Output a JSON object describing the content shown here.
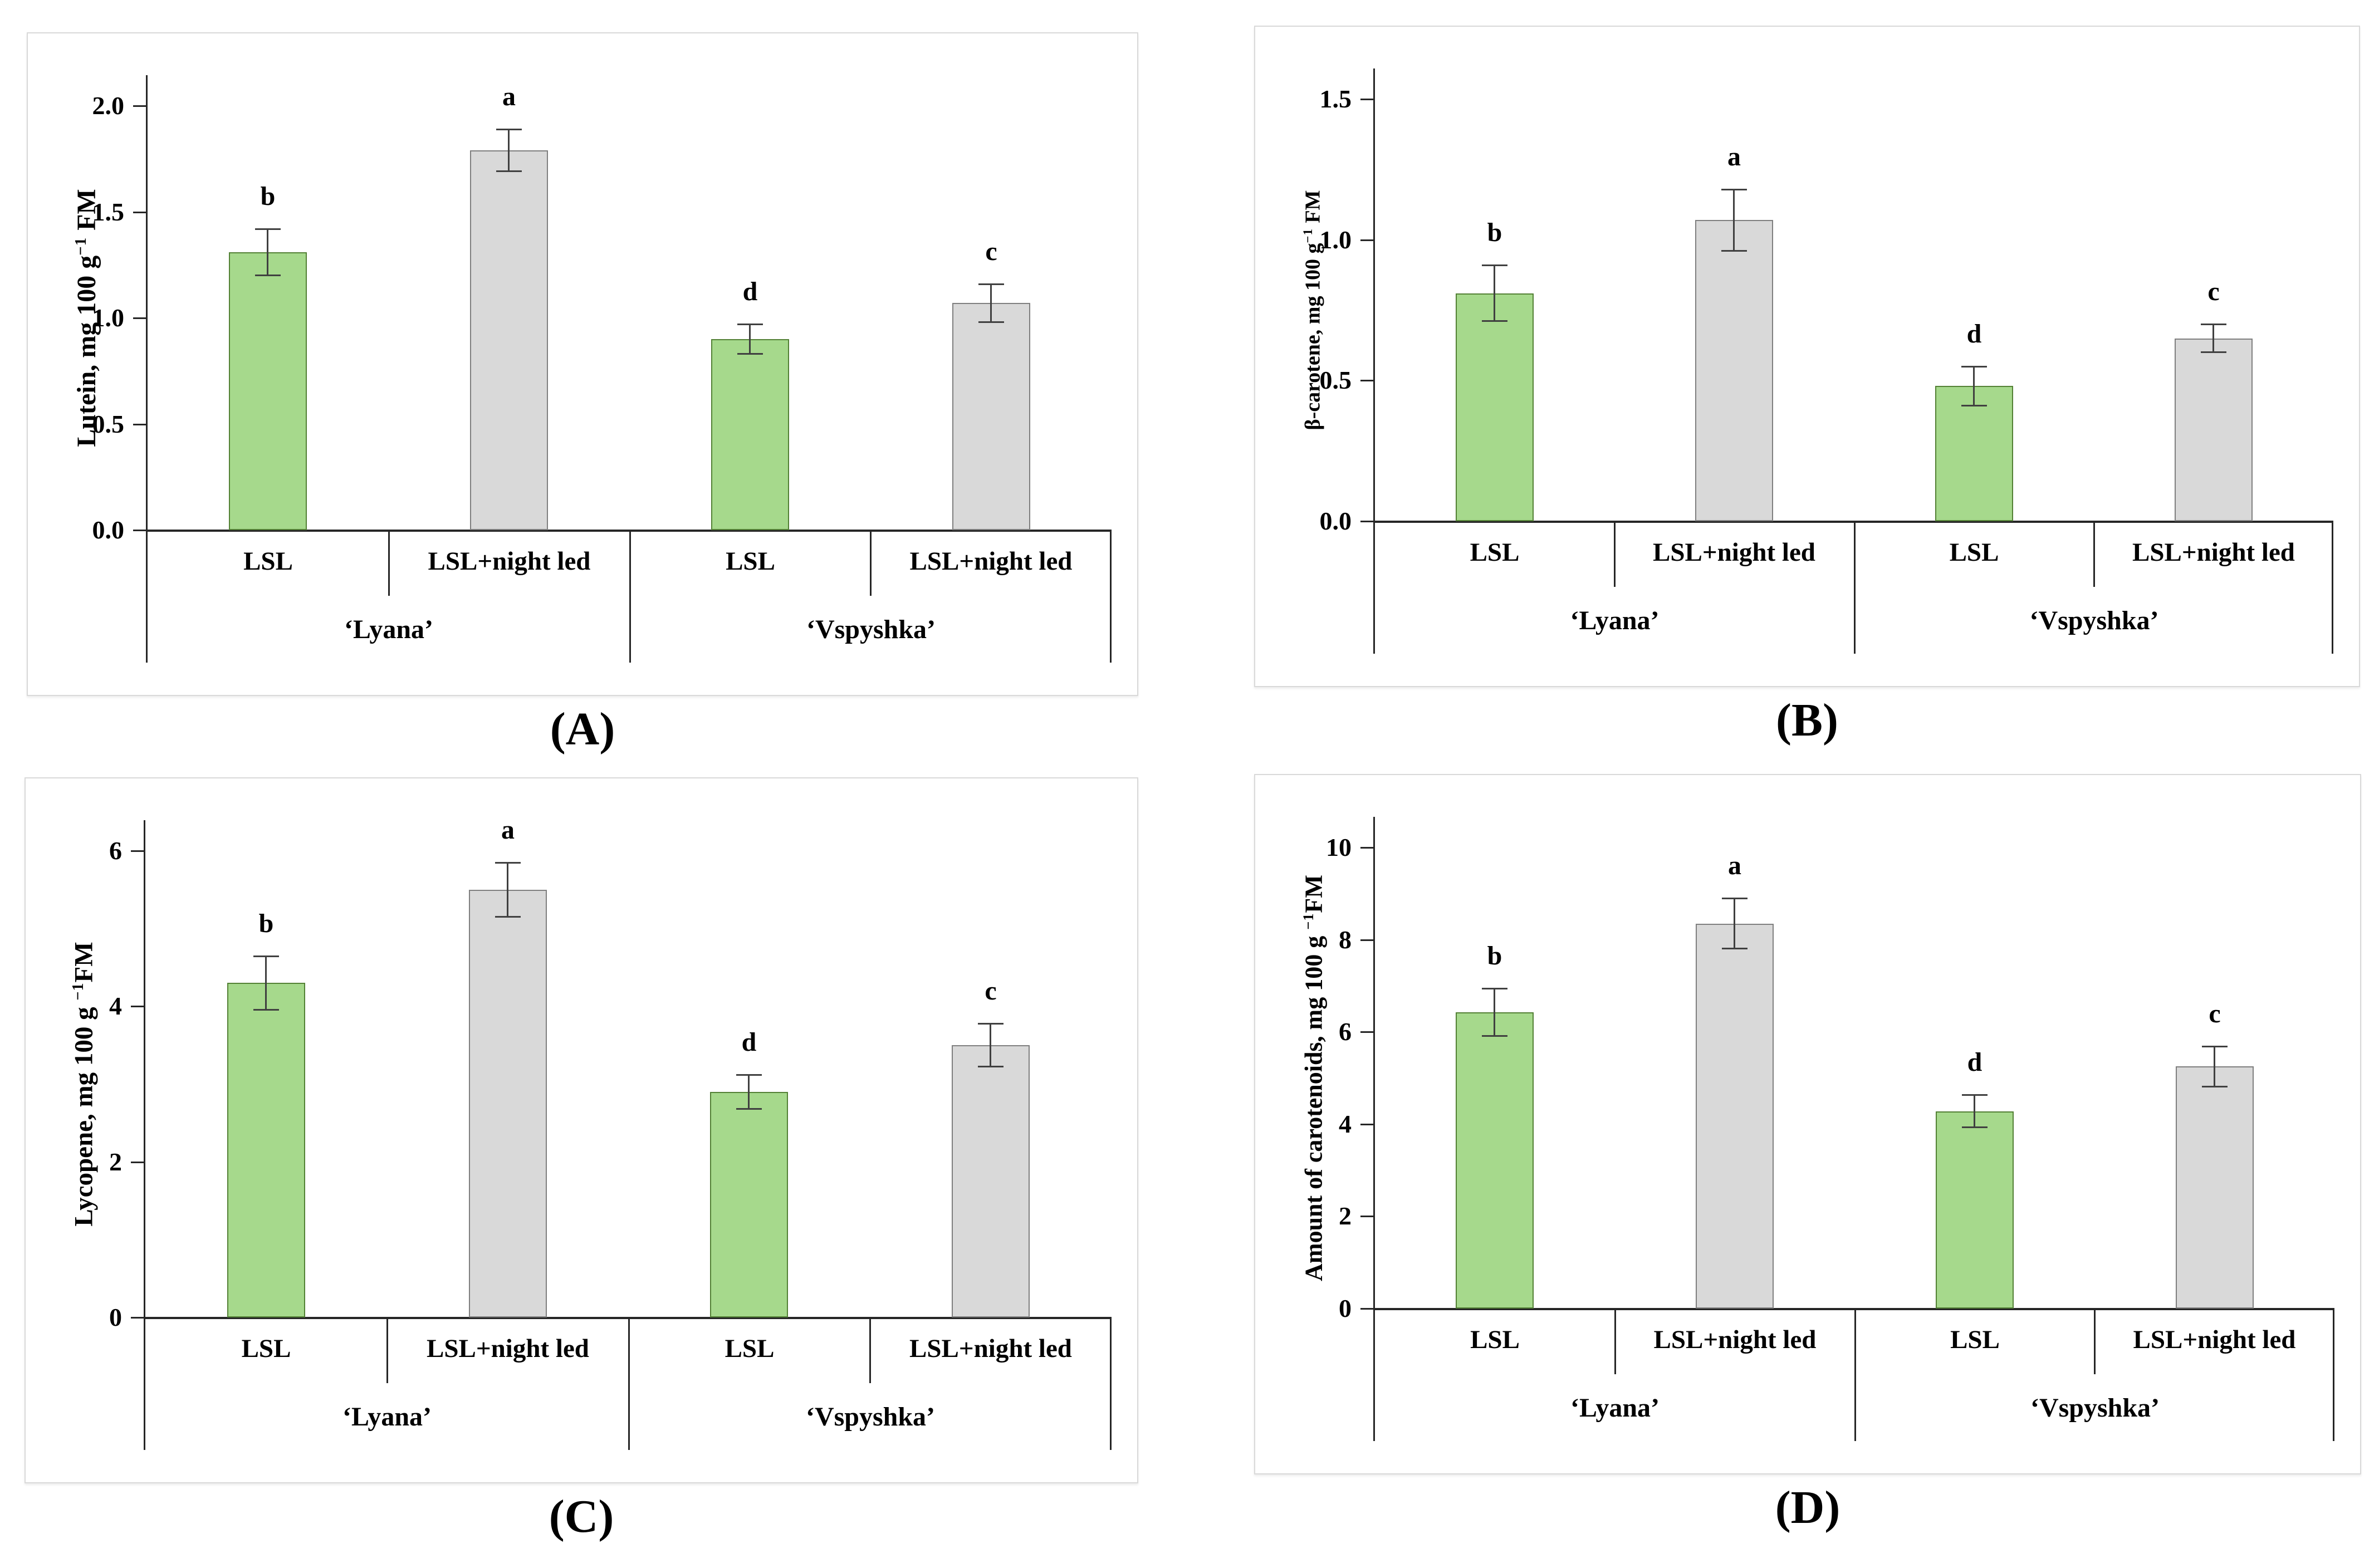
{
  "figure": {
    "background": "#ffffff"
  },
  "colors": {
    "green_fill": "#a6d98c",
    "green_border": "#538135",
    "gray_fill": "#d9d9d9",
    "gray_border": "#7f7f7f",
    "error_bar": "#404040",
    "axis": "#262626",
    "panel_border": "#d9d9d9",
    "text": "#000000"
  },
  "chart_data": [
    {
      "id": "A",
      "type": "bar",
      "caption": "(A)",
      "ylabel_pre": "Lutein, mg 100 g",
      "ylabel_sup": "−1",
      "ylabel_post": " FM",
      "ylim": [
        0,
        2.0
      ],
      "yticks": [
        "0.0",
        "0.5",
        "1.0",
        "1.5",
        "2.0"
      ],
      "grid": false,
      "legend": "none",
      "groups": [
        "‘Lyana’",
        "‘Vspyshka’"
      ],
      "categories": [
        "LSL",
        "LSL+night led",
        "LSL",
        "LSL+night led"
      ],
      "values": [
        1.31,
        1.79,
        0.9,
        1.07
      ],
      "errors": [
        0.11,
        0.1,
        0.07,
        0.09
      ],
      "letters": [
        "b",
        "a",
        "d",
        "c"
      ],
      "bar_colors": [
        "green",
        "gray",
        "green",
        "gray"
      ]
    },
    {
      "id": "B",
      "type": "bar",
      "caption": "(B)",
      "ylabel_pre": "β-carotene, mg 100 g",
      "ylabel_sup": "−1",
      "ylabel_post": " FM",
      "ylim": [
        0,
        1.5
      ],
      "yticks": [
        "0.0",
        "0.5",
        "1.0",
        "1.5"
      ],
      "grid": false,
      "legend": "none",
      "groups": [
        "‘Lyana’",
        "‘Vspyshka’"
      ],
      "categories": [
        "LSL",
        "LSL+night led",
        "LSL",
        "LSL+night led"
      ],
      "values": [
        0.81,
        1.07,
        0.48,
        0.65
      ],
      "errors": [
        0.1,
        0.11,
        0.07,
        0.05
      ],
      "letters": [
        "b",
        "a",
        "d",
        "c"
      ],
      "bar_colors": [
        "green",
        "gray",
        "green",
        "gray"
      ]
    },
    {
      "id": "C",
      "type": "bar",
      "caption": "(C)",
      "ylabel_pre": "Lycopene, mg 100 g ",
      "ylabel_sup": "−1",
      "ylabel_post": "FM",
      "ylim": [
        0,
        6
      ],
      "yticks": [
        "0",
        "2",
        "4",
        "6"
      ],
      "grid": false,
      "legend": "none",
      "groups": [
        "‘Lyana’",
        "‘Vspyshka’"
      ],
      "categories": [
        "LSL",
        "LSL+night led",
        "LSL",
        "LSL+night led"
      ],
      "values": [
        4.3,
        5.5,
        2.9,
        3.5
      ],
      "errors": [
        0.35,
        0.35,
        0.22,
        0.28
      ],
      "letters": [
        "b",
        "a",
        "d",
        "c"
      ],
      "bar_colors": [
        "green",
        "gray",
        "green",
        "gray"
      ]
    },
    {
      "id": "D",
      "type": "bar",
      "caption": "(D)",
      "ylabel_pre": "Amount of carotenoids, mg 100 g ",
      "ylabel_sup": "−1",
      "ylabel_post": "FM",
      "ylim": [
        0,
        10
      ],
      "yticks": [
        "0",
        "2",
        "4",
        "6",
        "8",
        "10"
      ],
      "grid": false,
      "legend": "none",
      "groups": [
        "‘Lyana’",
        "‘Vspyshka’"
      ],
      "categories": [
        "LSL",
        "LSL+night led",
        "LSL",
        "LSL+night led"
      ],
      "values": [
        6.43,
        8.35,
        4.28,
        5.25
      ],
      "errors": [
        0.52,
        0.55,
        0.36,
        0.44
      ],
      "letters": [
        "b",
        "a",
        "d",
        "c"
      ],
      "bar_colors": [
        "green",
        "gray",
        "green",
        "gray"
      ]
    }
  ]
}
